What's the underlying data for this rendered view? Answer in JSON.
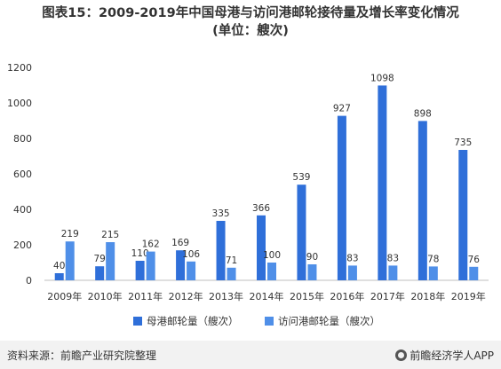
{
  "title_line1": "图表15：2009-2019年中国母港与访问港邮轮接待量及增长率变化情况",
  "title_line2": "(单位：艘次)",
  "source": "资料来源：前瞻产业研究院整理",
  "brand": "前瞻经济学人APP",
  "colors": {
    "series1": "#2f6fd9",
    "series2": "#4f8fe8"
  },
  "chart_data": {
    "type": "bar",
    "title": "图表15：2009-2019年中国母港与访问港邮轮接待量及增长率变化情况",
    "categories": [
      "2009年",
      "2010年",
      "2011年",
      "2012年",
      "2013年",
      "2014年",
      "2015年",
      "2016年",
      "2017年",
      "2018年",
      "2019年"
    ],
    "series": [
      {
        "name": "母港邮轮量（艘次）",
        "values": [
          40,
          79,
          110,
          169,
          335,
          366,
          539,
          927,
          1098,
          898,
          735
        ]
      },
      {
        "name": "访问港邮轮量（艘次）",
        "values": [
          219,
          215,
          162,
          106,
          71,
          100,
          90,
          83,
          83,
          78,
          76
        ]
      }
    ],
    "ylim": [
      0,
      1200
    ],
    "yticks": [
      0,
      200,
      400,
      600,
      800,
      1000,
      1200
    ],
    "grid": false,
    "legend": "bottom"
  }
}
